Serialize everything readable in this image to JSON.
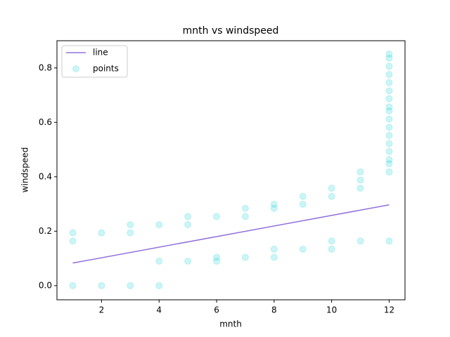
{
  "chart_data": {
    "type": "combo",
    "title": "mnth vs windspeed",
    "x_label": "mnth",
    "y_label": "windspeed",
    "xlim": [
      0.45,
      12.55
    ],
    "ylim": [
      -0.052,
      0.9
    ],
    "xticks": [
      2,
      4,
      6,
      8,
      10,
      12
    ],
    "yticks": [
      {
        "value": 0,
        "label": "0.0"
      },
      0.2,
      0.4,
      0.6,
      0.8
    ],
    "grid": false,
    "legend": "upper-left",
    "series": [
      {
        "name": "line",
        "type": "line",
        "color": "#9370db",
        "x": [
          1,
          12
        ],
        "values": [
          0.083,
          0.297
        ]
      },
      {
        "name": "points",
        "type": "scatter",
        "color": "#00ced1",
        "alpha": 0.2,
        "x": [
          1,
          1,
          1,
          2,
          2,
          3,
          3,
          3,
          4,
          4,
          4,
          5,
          5,
          5,
          6,
          6,
          6,
          7,
          7,
          7,
          8,
          8,
          8,
          8,
          9,
          9,
          9,
          10,
          10,
          10,
          10,
          11,
          11,
          11,
          11,
          12,
          12,
          12,
          12,
          12,
          12,
          12,
          12,
          12,
          12,
          12,
          12,
          12,
          12,
          12,
          12,
          12,
          12
        ],
        "values": [
          0,
          0.164,
          0.194,
          0,
          0.194,
          0,
          0.194,
          0.224,
          0,
          0.09,
          0.224,
          0.09,
          0.224,
          0.254,
          0.09,
          0.104,
          0.254,
          0.104,
          0.254,
          0.284,
          0.104,
          0.134,
          0.284,
          0.299,
          0.134,
          0.299,
          0.328,
          0.134,
          0.164,
          0.328,
          0.358,
          0.164,
          0.358,
          0.388,
          0.418,
          0.164,
          0.418,
          0.448,
          0.463,
          0.493,
          0.522,
          0.552,
          0.582,
          0.612,
          0.642,
          0.657,
          0.687,
          0.716,
          0.746,
          0.776,
          0.806,
          0.836,
          0.851
        ]
      }
    ]
  }
}
